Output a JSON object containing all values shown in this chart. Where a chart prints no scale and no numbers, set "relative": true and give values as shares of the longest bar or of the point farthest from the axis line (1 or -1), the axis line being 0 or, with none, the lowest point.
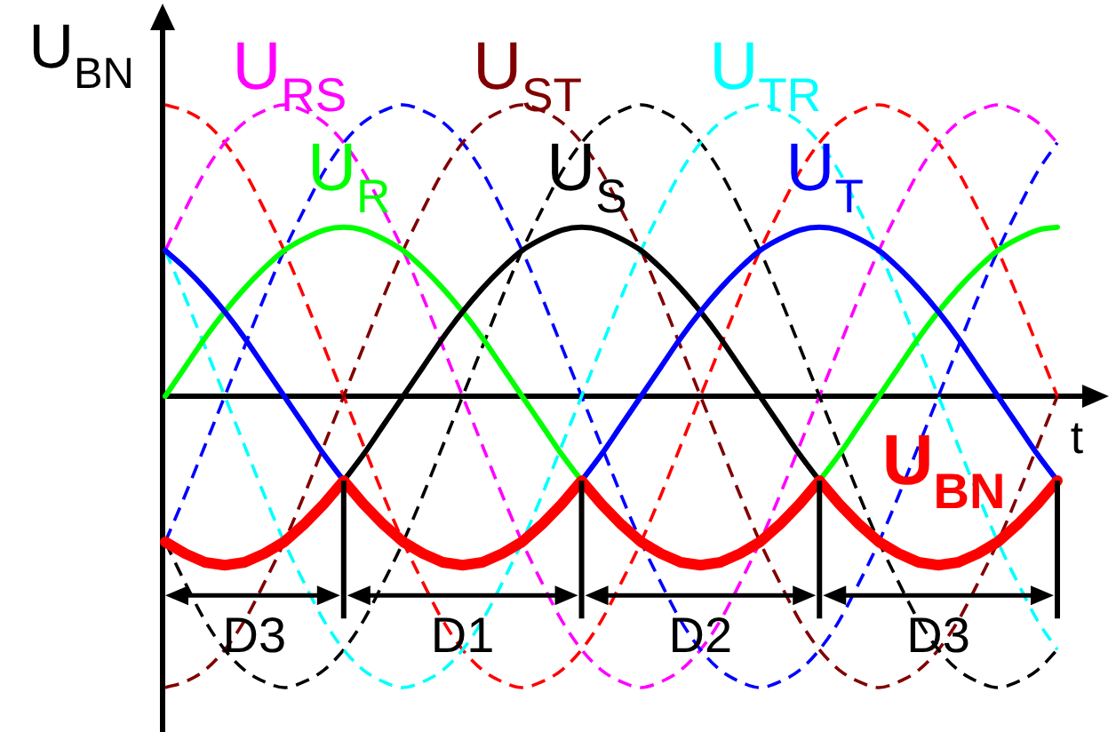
{
  "chart_data": {
    "type": "line",
    "xlabel": "t",
    "ylabel": "U$_{BN}$",
    "relative": true,
    "line_style": "solid",
    "marker": "none",
    "legend": false,
    "categories": [
      null,
      null,
      null,
      null,
      null,
      null,
      null,
      null,
      null,
      null,
      null,
      null,
      null,
      null,
      null,
      null,
      null,
      null,
      null,
      null,
      null,
      null,
      null,
      null,
      null,
      null,
      null,
      null,
      null,
      null,
      null,
      null,
      null,
      null,
      null,
      null,
      null,
      null,
      null,
      null,
      null,
      null,
      null,
      null,
      null,
      null
    ],
    "series": [
      {
        "color": "#ff0000",
        "line_style": "dashed",
        "values": [
          1,
          0.98,
          0.94,
          0.87,
          0.77,
          0.64,
          0.5,
          0.34,
          0.17,
          0,
          -0.17,
          -0.34,
          -0.5,
          -0.64,
          -0.77,
          -0.87,
          -0.94,
          -0.98,
          -1,
          -0.98,
          -0.94,
          -0.87,
          -0.77,
          -0.64,
          -0.5,
          -0.34,
          -0.17,
          0,
          0.17,
          0.34,
          0.5,
          0.64,
          0.77,
          0.87,
          0.94,
          0.98,
          1,
          0.98,
          0.94,
          0.87,
          0.77,
          0.64,
          0.5,
          0.34,
          0.17,
          0
        ]
      },
      {
        "name": "U$_{RS}$",
        "color": "#ff00ff",
        "line_style": "dashed",
        "values": [
          0.5,
          0.64,
          0.77,
          0.87,
          0.94,
          0.98,
          1,
          0.98,
          0.94,
          0.87,
          0.77,
          0.64,
          0.5,
          0.34,
          0.17,
          0,
          -0.17,
          -0.34,
          -0.5,
          -0.64,
          -0.77,
          -0.87,
          -0.94,
          -0.98,
          -1,
          -0.98,
          -0.94,
          -0.87,
          -0.77,
          -0.64,
          -0.5,
          -0.34,
          -0.17,
          0,
          0.17,
          0.34,
          0.5,
          0.64,
          0.77,
          0.87,
          0.94,
          0.98,
          1,
          0.98,
          0.94,
          0.87
        ]
      },
      {
        "color": "#0000ff",
        "line_style": "dashed",
        "values": [
          -0.5,
          -0.34,
          -0.17,
          0,
          0.17,
          0.34,
          0.5,
          0.64,
          0.77,
          0.87,
          0.94,
          0.98,
          1,
          0.98,
          0.94,
          0.87,
          0.77,
          0.64,
          0.5,
          0.34,
          0.17,
          0,
          -0.17,
          -0.34,
          -0.5,
          -0.64,
          -0.77,
          -0.87,
          -0.94,
          -0.98,
          -1,
          -0.98,
          -0.94,
          -0.87,
          -0.77,
          -0.64,
          -0.5,
          -0.34,
          -0.17,
          0,
          0.17,
          0.34,
          0.5,
          0.64,
          0.77,
          0.87
        ]
      },
      {
        "name": "U$_{ST}$",
        "color": "#800000",
        "line_style": "dashed",
        "values": [
          -1,
          -0.98,
          -0.94,
          -0.87,
          -0.77,
          -0.64,
          -0.5,
          -0.34,
          -0.17,
          0,
          0.17,
          0.34,
          0.5,
          0.64,
          0.77,
          0.87,
          0.94,
          0.98,
          1,
          0.98,
          0.94,
          0.87,
          0.77,
          0.64,
          0.5,
          0.34,
          0.17,
          0,
          -0.17,
          -0.34,
          -0.5,
          -0.64,
          -0.77,
          -0.87,
          -0.94,
          -0.98,
          -1,
          -0.98,
          -0.94,
          -0.87,
          -0.77,
          -0.64,
          -0.5,
          -0.34,
          -0.17,
          0
        ]
      },
      {
        "color": "#000000",
        "line_style": "dashed",
        "values": [
          -0.5,
          -0.64,
          -0.77,
          -0.87,
          -0.94,
          -0.98,
          -1,
          -0.98,
          -0.94,
          -0.87,
          -0.77,
          -0.64,
          -0.5,
          -0.34,
          -0.17,
          0,
          0.17,
          0.34,
          0.5,
          0.64,
          0.77,
          0.87,
          0.94,
          0.98,
          1,
          0.98,
          0.94,
          0.87,
          0.77,
          0.64,
          0.5,
          0.34,
          0.17,
          0,
          -0.17,
          -0.34,
          -0.5,
          -0.64,
          -0.77,
          -0.87,
          -0.94,
          -0.98,
          -1,
          -0.98,
          -0.94,
          -0.87
        ]
      },
      {
        "name": "U$_{TR}$",
        "color": "#00ffff",
        "line_style": "dashed",
        "values": [
          0.5,
          0.34,
          0.17,
          0,
          -0.17,
          -0.34,
          -0.5,
          -0.64,
          -0.77,
          -0.87,
          -0.94,
          -0.98,
          -1,
          -0.98,
          -0.94,
          -0.87,
          -0.77,
          -0.64,
          -0.5,
          -0.34,
          -0.17,
          0,
          0.17,
          0.34,
          0.5,
          0.64,
          0.77,
          0.87,
          0.94,
          0.98,
          1,
          0.98,
          0.94,
          0.87,
          0.77,
          0.64,
          0.5,
          0.34,
          0.17,
          0,
          -0.17,
          -0.34,
          -0.5,
          -0.64,
          -0.77,
          -0.87
        ]
      },
      {
        "name": "U$_{R}$",
        "color": "#00ff00",
        "values": [
          0,
          0.1,
          0.2,
          0.29,
          0.37,
          0.44,
          0.5,
          0.54,
          0.57,
          0.58,
          0.57,
          0.54,
          0.5,
          0.44,
          0.37,
          0.29,
          0.2,
          0.1,
          0,
          -0.1,
          -0.2,
          -0.29,
          null,
          null,
          null,
          null,
          null,
          null,
          null,
          null,
          null,
          null,
          null,
          -0.29,
          -0.2,
          -0.1,
          0,
          0.1,
          0.2,
          0.29,
          0.37,
          0.44,
          0.5,
          0.54,
          0.57,
          0.58
        ]
      },
      {
        "name": "U$_{S}$",
        "color": "#000000",
        "values": [
          null,
          null,
          null,
          null,
          null,
          null,
          null,
          null,
          null,
          -0.29,
          -0.2,
          -0.1,
          0,
          0.1,
          0.2,
          0.29,
          0.37,
          0.44,
          0.5,
          0.54,
          0.57,
          0.58,
          0.57,
          0.54,
          0.5,
          0.44,
          0.37,
          0.29,
          0.2,
          0.1,
          0,
          -0.1,
          -0.2,
          -0.29,
          null,
          null,
          null,
          null,
          null,
          null,
          null,
          null,
          null,
          null,
          null,
          null
        ]
      },
      {
        "name": "U$_{T}$",
        "color": "#0000ff",
        "values": [
          0.5,
          0.44,
          0.37,
          0.29,
          0.2,
          0.1,
          0,
          -0.1,
          -0.2,
          -0.29,
          null,
          null,
          null,
          null,
          null,
          null,
          null,
          null,
          null,
          null,
          null,
          -0.29,
          -0.2,
          -0.1,
          0,
          0.1,
          0.2,
          0.29,
          0.37,
          0.44,
          0.5,
          0.54,
          0.57,
          0.58,
          0.57,
          0.54,
          0.5,
          0.44,
          0.37,
          0.29,
          0.2,
          0.1,
          0,
          -0.1,
          -0.2,
          -0.29
        ]
      },
      {
        "name": "U$_{BN}$",
        "color": "#ff0000",
        "values": [
          -0.5,
          -0.54,
          -0.57,
          -0.58,
          -0.57,
          -0.54,
          -0.5,
          -0.44,
          -0.37,
          -0.29,
          -0.37,
          -0.44,
          -0.5,
          -0.54,
          -0.57,
          -0.58,
          -0.57,
          -0.54,
          -0.5,
          -0.44,
          -0.37,
          -0.29,
          -0.37,
          -0.44,
          -0.5,
          -0.54,
          -0.57,
          -0.58,
          -0.57,
          -0.54,
          -0.5,
          -0.44,
          -0.37,
          -0.29,
          -0.37,
          -0.44,
          -0.5,
          -0.54,
          -0.57,
          -0.58,
          -0.57,
          -0.54,
          -0.5,
          -0.44,
          -0.37,
          -0.29
        ]
      }
    ],
    "annotations": [
      "D3",
      "D1",
      "D2",
      "D3"
    ]
  }
}
